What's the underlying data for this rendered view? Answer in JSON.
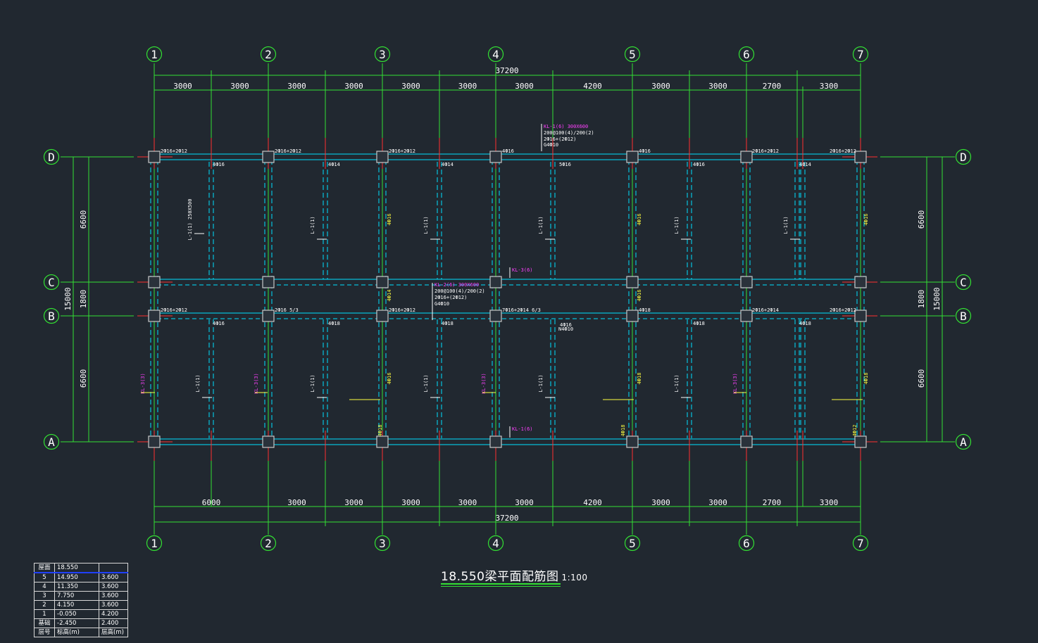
{
  "drawing": {
    "title": "18.550梁平面配筋图",
    "scale": "1:100"
  },
  "axes": {
    "x": [
      "1",
      "2",
      "3",
      "4",
      "5",
      "6",
      "7"
    ],
    "y": [
      "D",
      "C",
      "B",
      "A"
    ]
  },
  "dims": {
    "top_total": "37200",
    "top": [
      "3000",
      "3000",
      "3000",
      "3000",
      "3000",
      "3000",
      "3000",
      "4200",
      "3000",
      "3000",
      "2700",
      "3300"
    ],
    "bottom": [
      "6000",
      "3000",
      "3000",
      "3000",
      "3000",
      "3000",
      "4200",
      "3000",
      "3000",
      "2700",
      "3300"
    ],
    "bottom_total": "37200",
    "left_total": "15000",
    "left": [
      "6600",
      "1800",
      "6600"
    ],
    "right_total": "15000",
    "right": [
      "6600",
      "1800",
      "6600"
    ]
  },
  "labels": {
    "white": [
      "2Ф16+2Ф12",
      "2Ф16+2Ф12",
      "2Ф16+2Ф12",
      "4Ф16",
      "4Ф16",
      "2Ф16+2Ф12",
      "2Ф16+2Ф12",
      "4Ф16",
      "4Ф14",
      "4Ф14",
      "5Ф16",
      "4Ф14",
      "4Ф16",
      "2Ф16+2Ф12",
      "2Ф16 5/3",
      "2Ф16+2Ф12",
      "7Ф16+2Ф14 6/3",
      "4Ф16",
      "2Ф16+2Ф14",
      "2Ф16+2Ф12",
      "4Ф16",
      "4Ф18",
      "4Ф18",
      "4Ф18",
      "N4Ф10",
      "4Ф18",
      "4Ф18",
      "200@100(4)/200(2)",
      "2Ф16+(2Ф12)",
      "G4Ф10",
      "200@100(4)/200(2)",
      "2Ф16+(2Ф12)",
      "G4Ф10"
    ],
    "magenta": [
      "KL-1(6) 300X600",
      "KL-2(6) 300X600",
      "KL-3(6)",
      "KL-1(6)",
      "KL-3(3)",
      "KL-3(3)",
      "KL-3(3)",
      "KL-3(3)"
    ],
    "yellow": [
      "4Ф16",
      "4Ф16",
      "4Ф16",
      "4Ф16",
      "4Ф18",
      "4Ф18",
      "4Ф18",
      "4Ф18",
      "4Ф12",
      "4Ф14",
      "4Ф16"
    ]
  },
  "beams": [
    "L-1(1) 250X500",
    "L-1(1)",
    "L-1(1)",
    "L-1(1)",
    "L-1(1)",
    "L-1(1)",
    "L-1(1)",
    "L-1(1)",
    "L-1(1)",
    "L-1(1)",
    "L-1(1)"
  ],
  "level_table": {
    "header": [
      "屋面",
      "18.550",
      ""
    ],
    "rows": [
      [
        "5",
        "14.950",
        "3.600"
      ],
      [
        "4",
        "11.350",
        "3.600"
      ],
      [
        "3",
        "7.750",
        "3.600"
      ],
      [
        "2",
        "4.150",
        "3.600"
      ],
      [
        "1",
        "-0.050",
        "4.200"
      ],
      [
        "基础",
        "-2.450",
        "2.400"
      ],
      [
        "层号",
        "标高(m)",
        "层高(m)"
      ]
    ]
  },
  "colors": {
    "background": "#212830",
    "axis_line": "#33e033",
    "beam": "#00e0ff",
    "column": "#c8c8c8",
    "rebar_text": "#ffffff",
    "beam_tag": "#ff40ff",
    "rebar_yellow": "#ffff40",
    "red_tick": "#ff3030"
  }
}
